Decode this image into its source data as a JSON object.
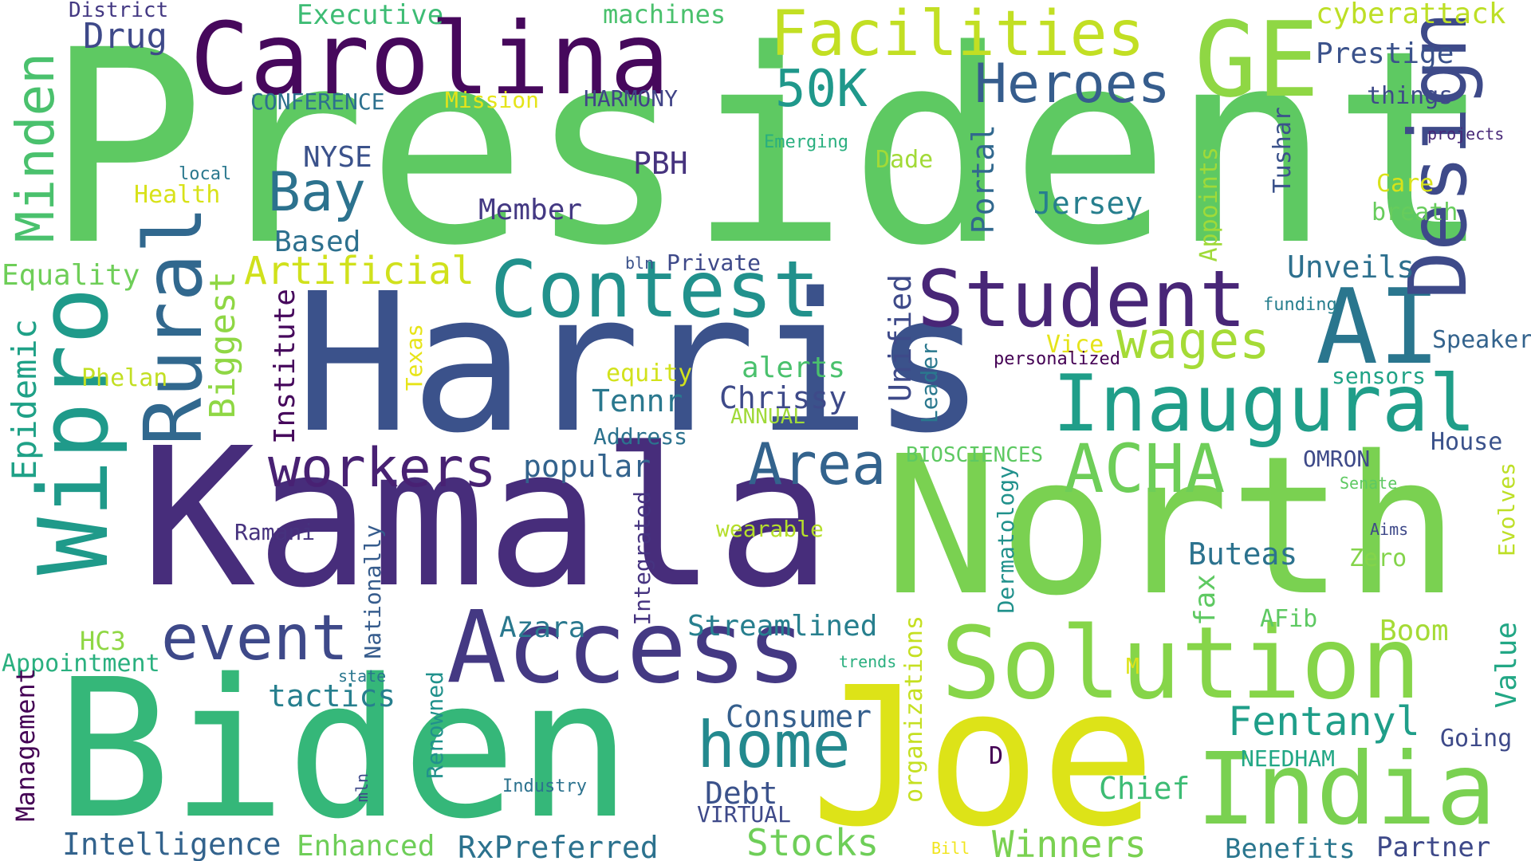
{
  "colors": {
    "background": "#ffffff",
    "palette": [
      "#440154",
      "#46327e",
      "#365c8d",
      "#277f8e",
      "#1fa187",
      "#4ac16d",
      "#a0da39",
      "#fde725"
    ]
  },
  "words": [
    {
      "text": "President",
      "color": "#5ec962"
    },
    {
      "text": "Harris",
      "color": "#3b528b"
    },
    {
      "text": "Kamala",
      "color": "#472d7b"
    },
    {
      "text": "North",
      "color": "#7ad151"
    },
    {
      "text": "Biden",
      "color": "#35b779"
    },
    {
      "text": "Joe",
      "color": "#dde318"
    },
    {
      "text": "Carolina",
      "color": "#46085c"
    },
    {
      "text": "Access",
      "color": "#443983"
    },
    {
      "text": "Solution",
      "color": "#86d549"
    },
    {
      "text": "India",
      "color": "#7ad151"
    },
    {
      "text": "Contest",
      "color": "#21918c"
    },
    {
      "text": "Student",
      "color": "#482677"
    },
    {
      "text": "Inaugural",
      "color": "#1f9e89"
    },
    {
      "text": "AI",
      "color": "#2a768e"
    },
    {
      "text": "Design",
      "color": "#3e4a89"
    },
    {
      "text": "Wipro",
      "color": "#1f9a8a"
    },
    {
      "text": "Rural",
      "color": "#31688e"
    },
    {
      "text": "GE",
      "color": "#8fd744"
    },
    {
      "text": "Facilities",
      "color": "#c2df23"
    },
    {
      "text": "ACHA",
      "color": "#6ece58"
    },
    {
      "text": "home",
      "color": "#23898e"
    },
    {
      "text": "event",
      "color": "#3e4989"
    },
    {
      "text": "workers",
      "color": "#482173"
    },
    {
      "text": "Area",
      "color": "#33638d"
    },
    {
      "text": "Heroes",
      "color": "#365d8d"
    },
    {
      "text": "50K",
      "color": "#1f988b"
    },
    {
      "text": "Minden",
      "color": "#4ac16d"
    },
    {
      "text": "Bay",
      "color": "#2c728e"
    },
    {
      "text": "wages",
      "color": "#a5db36"
    },
    {
      "text": "Fentanyl",
      "color": "#1f9e89"
    },
    {
      "text": "Stocks",
      "color": "#6ece58"
    },
    {
      "text": "Winners",
      "color": "#7ad151"
    },
    {
      "text": "Artificial",
      "color": "#d0e11c"
    },
    {
      "text": "Executive",
      "color": "#3dbc74"
    },
    {
      "text": "machines",
      "color": "#4ac16d"
    },
    {
      "text": "cyberattack",
      "color": "#bddf26"
    },
    {
      "text": "Prestige",
      "color": "#3b528b"
    },
    {
      "text": "Drug",
      "color": "#3e4989"
    },
    {
      "text": "District",
      "color": "#443983"
    },
    {
      "text": "CONFERENCE",
      "color": "#2d708e"
    },
    {
      "text": "Mission",
      "color": "#e5e419"
    },
    {
      "text": "HARMONY",
      "color": "#414487"
    },
    {
      "text": "things",
      "color": "#3e4a89"
    },
    {
      "text": "projects",
      "color": "#482878"
    },
    {
      "text": "Emerging",
      "color": "#29af7f"
    },
    {
      "text": "NYSE",
      "color": "#3b528b"
    },
    {
      "text": "PBH",
      "color": "#46337e"
    },
    {
      "text": "Dade",
      "color": "#a2da37"
    },
    {
      "text": "Care",
      "color": "#d8e219"
    },
    {
      "text": "breath",
      "color": "#67cc5c"
    },
    {
      "text": "local",
      "color": "#2a788e"
    },
    {
      "text": "Health",
      "color": "#d8e219"
    },
    {
      "text": "Member",
      "color": "#443983"
    },
    {
      "text": "Jersey",
      "color": "#277f8e"
    },
    {
      "text": "Based",
      "color": "#2d708e"
    },
    {
      "text": "Portal",
      "color": "#31688e"
    },
    {
      "text": "Tushar",
      "color": "#3b528b"
    },
    {
      "text": "Appoints",
      "color": "#a0da39"
    },
    {
      "text": "Equality",
      "color": "#6ece58"
    },
    {
      "text": "Biggest",
      "color": "#8fd744"
    },
    {
      "text": "Private",
      "color": "#3e4989"
    },
    {
      "text": "bln",
      "color": "#3b528b"
    },
    {
      "text": "Unveils",
      "color": "#2d708e"
    },
    {
      "text": "funding",
      "color": "#277f8e"
    },
    {
      "text": "Speaker",
      "color": "#33638d"
    },
    {
      "text": "Epidemic",
      "color": "#1fa187"
    },
    {
      "text": "Institute",
      "color": "#46085c"
    },
    {
      "text": "Texas",
      "color": "#e7e419"
    },
    {
      "text": "Unified",
      "color": "#3e4a89"
    },
    {
      "text": "Leader",
      "color": "#2a788e"
    },
    {
      "text": "Vice",
      "color": "#e5e419"
    },
    {
      "text": "personalized",
      "color": "#440154"
    },
    {
      "text": "sensors",
      "color": "#20a386"
    },
    {
      "text": "Phelan",
      "color": "#c2df23"
    },
    {
      "text": "equity",
      "color": "#d2e21b"
    },
    {
      "text": "alerts",
      "color": "#4ac16d"
    },
    {
      "text": "Tennr",
      "color": "#2a788e"
    },
    {
      "text": "Chrissy",
      "color": "#3e4a89"
    },
    {
      "text": "ANNUAL",
      "color": "#a0da39"
    },
    {
      "text": "Address",
      "color": "#2c728e"
    },
    {
      "text": "BIOSCIENCES",
      "color": "#5ec962"
    },
    {
      "text": "House",
      "color": "#3b528b"
    },
    {
      "text": "OMRON",
      "color": "#3e4a89"
    },
    {
      "text": "Senate",
      "color": "#5ec962"
    },
    {
      "text": "popular",
      "color": "#33638d"
    },
    {
      "text": "Ramani",
      "color": "#46327e"
    },
    {
      "text": "Nationally",
      "color": "#365c8d"
    },
    {
      "text": "Integrated",
      "color": "#463480"
    },
    {
      "text": "wearable",
      "color": "#b5de2b"
    },
    {
      "text": "Dermatology",
      "color": "#21918c"
    },
    {
      "text": "Buteas",
      "color": "#2c728e"
    },
    {
      "text": "Zero",
      "color": "#84d44b"
    },
    {
      "text": "Aims",
      "color": "#3e4989"
    },
    {
      "text": "Evolves",
      "color": "#bddf26"
    },
    {
      "text": "Azara",
      "color": "#2a788e"
    },
    {
      "text": "Streamlined",
      "color": "#277f8e"
    },
    {
      "text": "fax",
      "color": "#5ec962"
    },
    {
      "text": "AFib",
      "color": "#5ec962"
    },
    {
      "text": "Boom",
      "color": "#a5db36"
    },
    {
      "text": "HC3",
      "color": "#8fd744"
    },
    {
      "text": "Appointment",
      "color": "#2ab07f"
    },
    {
      "text": "state",
      "color": "#2a768e"
    },
    {
      "text": "organizations",
      "color": "#c5e021"
    },
    {
      "text": "trends",
      "color": "#29af7f"
    },
    {
      "text": "M",
      "color": "#dde318"
    },
    {
      "text": "Value",
      "color": "#22a785"
    },
    {
      "text": "tactics",
      "color": "#277f8e"
    },
    {
      "text": "Renowned",
      "color": "#21918c"
    },
    {
      "text": "Consumer",
      "color": "#355f8d"
    },
    {
      "text": "Management",
      "color": "#440154"
    },
    {
      "text": "mln",
      "color": "#3e4989"
    },
    {
      "text": "Industry",
      "color": "#2c728e"
    },
    {
      "text": "Debt",
      "color": "#3b528b"
    },
    {
      "text": "VIRTUAL",
      "color": "#3e4989"
    },
    {
      "text": "Chief",
      "color": "#3dbc74"
    },
    {
      "text": "NEEDHAM",
      "color": "#22a785"
    },
    {
      "text": "Going",
      "color": "#3e4a89"
    },
    {
      "text": "D",
      "color": "#440154"
    },
    {
      "text": "Intelligence",
      "color": "#33638d"
    },
    {
      "text": "Enhanced",
      "color": "#6ece58"
    },
    {
      "text": "RxPreferred",
      "color": "#2c728e"
    },
    {
      "text": "Bill",
      "color": "#f1e51d"
    },
    {
      "text": "Benefits",
      "color": "#2a768e"
    },
    {
      "text": "Partner",
      "color": "#3e4989"
    }
  ]
}
